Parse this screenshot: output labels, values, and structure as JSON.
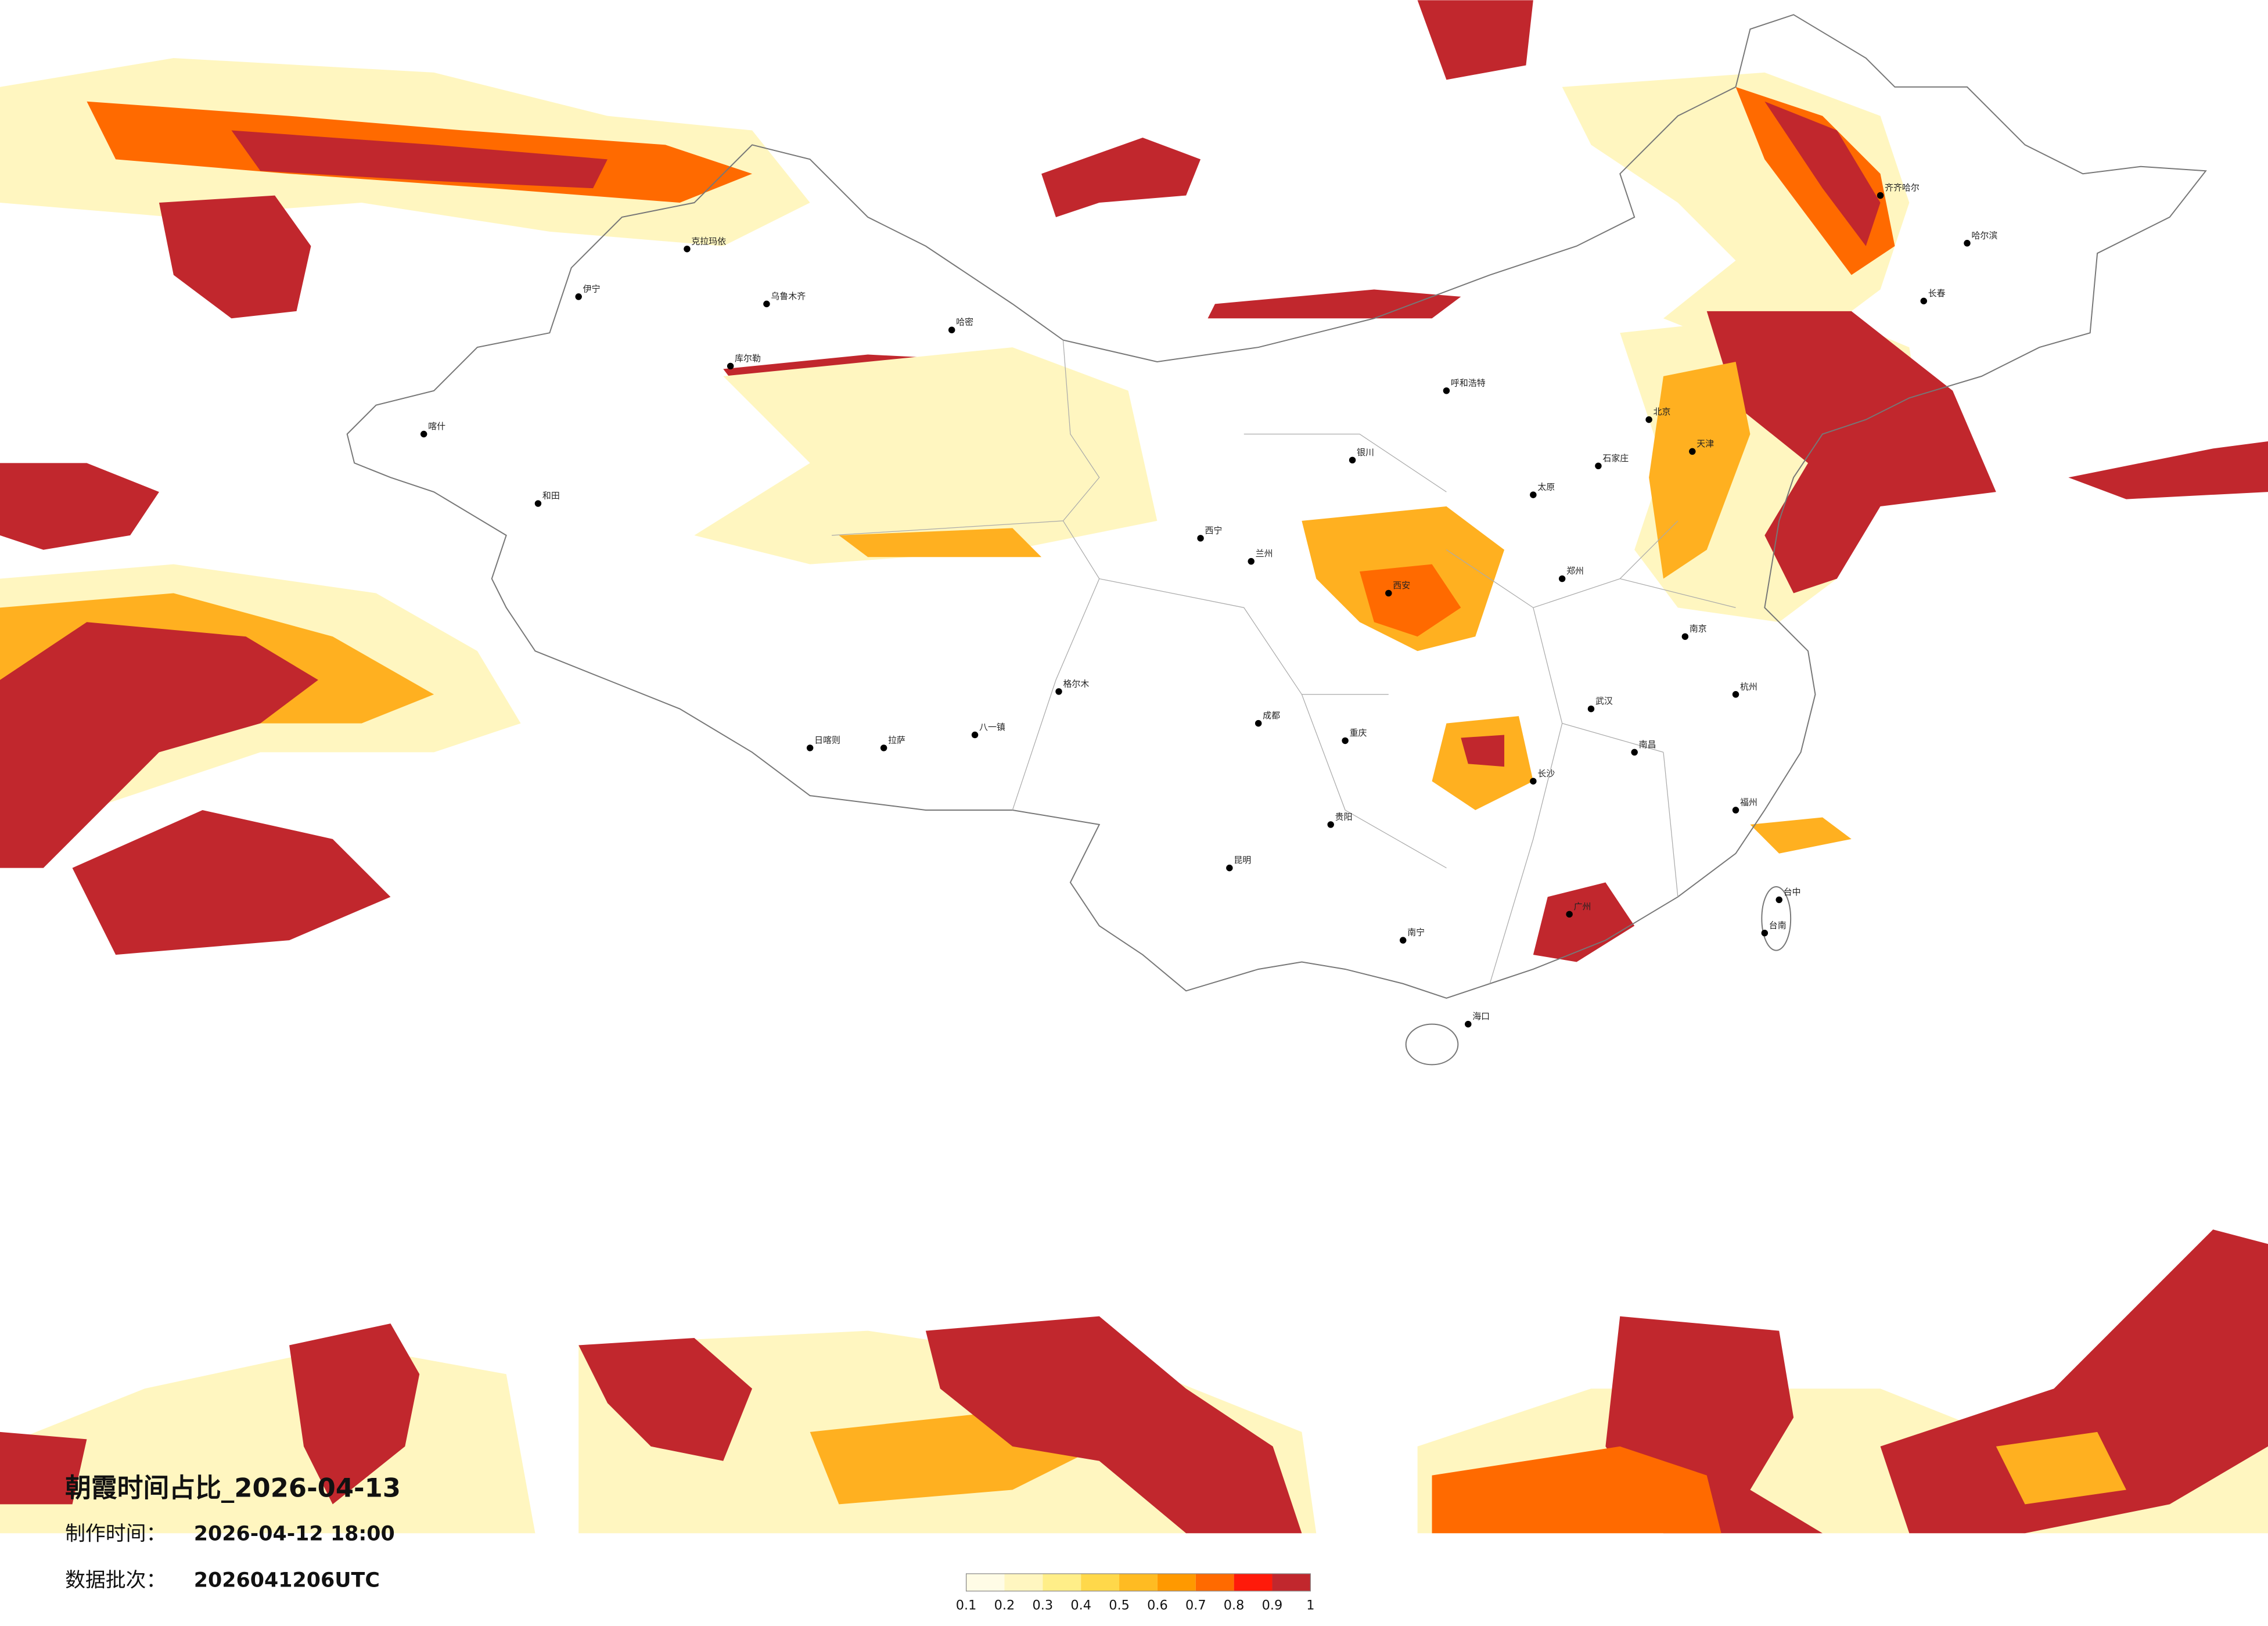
{
  "map": {
    "title": "朝霞时间占比_2026-04-13",
    "make_time_label": "制作时间：",
    "make_time": "2026-04-12 18:00",
    "batch_label": "数据批次：",
    "batch": "2026041206UTC",
    "colorbar": {
      "ticks": [
        0.1,
        0.2,
        0.3,
        0.4,
        0.5,
        0.6,
        0.7,
        0.8,
        0.9,
        1
      ],
      "colors": [
        "#fffce6",
        "#fff6c0",
        "#ffee88",
        "#ffd84a",
        "#ffbb22",
        "#ff9900",
        "#ff6a00",
        "#ff1a0a",
        "#c1272d"
      ]
    },
    "cities": [
      "克拉玛依",
      "乌鲁木齐",
      "伊宁",
      "库尔勒",
      "喀什",
      "和田",
      "哈密",
      "格尔木",
      "拉萨",
      "日喀则",
      "八一镇",
      "西宁",
      "兰州",
      "银川",
      "呼和浩特",
      "北京",
      "天津",
      "石家庄",
      "太原",
      "西安",
      "郑州",
      "武汉",
      "长沙",
      "南昌",
      "成都",
      "重庆",
      "贵阳",
      "昆明",
      "南宁",
      "广州",
      "福州",
      "杭州",
      "南京",
      "哈尔滨",
      "长春",
      "齐齐哈尔",
      "海口",
      "台中",
      "台南"
    ]
  }
}
